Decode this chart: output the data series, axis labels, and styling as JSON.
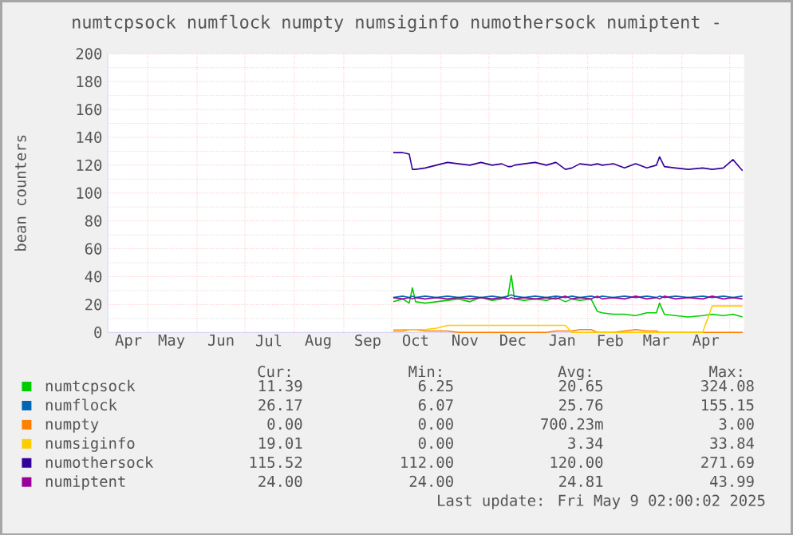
{
  "chart_data": {
    "type": "line",
    "title": "numtcpsock numflock numpty numsiginfo numothersock numiptent -",
    "ylabel": "bean counters",
    "x": [
      "2024-10-02",
      "2024-10-08",
      "2024-10-12",
      "2024-10-14",
      "2024-10-16",
      "2024-10-22",
      "2024-10-29",
      "2024-11-05",
      "2024-11-12",
      "2024-11-19",
      "2024-11-26",
      "2024-12-03",
      "2024-12-09",
      "2024-12-13",
      "2024-12-15",
      "2024-12-17",
      "2024-12-23",
      "2024-12-30",
      "2025-01-06",
      "2025-01-12",
      "2025-01-18",
      "2025-01-22",
      "2025-01-27",
      "2025-02-03",
      "2025-02-07",
      "2025-02-10",
      "2025-02-17",
      "2025-02-24",
      "2025-03-03",
      "2025-03-10",
      "2025-03-16",
      "2025-03-18",
      "2025-03-21",
      "2025-03-28",
      "2025-04-05",
      "2025-04-14",
      "2025-04-20",
      "2025-04-27",
      "2025-05-03",
      "2025-05-09"
    ],
    "series": [
      {
        "name": "numtcpsock",
        "color": "#00cc00",
        "values": [
          22,
          24,
          21,
          32,
          22,
          21,
          22,
          23,
          24,
          22,
          25,
          23,
          24,
          26,
          41,
          24,
          23,
          24,
          23,
          25,
          22,
          24,
          23,
          24,
          15,
          14,
          13,
          13,
          12,
          14,
          14,
          21,
          13,
          12,
          11,
          12,
          13,
          12,
          13,
          11
        ]
      },
      {
        "name": "numflock",
        "color": "#0066b3",
        "values": [
          25,
          26,
          25,
          26,
          25,
          26,
          25,
          26,
          25,
          26,
          25,
          26,
          25,
          26,
          27,
          26,
          25,
          26,
          25,
          26,
          25,
          26,
          25,
          26,
          25,
          26,
          25,
          26,
          25,
          26,
          25,
          26,
          25,
          26,
          25,
          26,
          25,
          26,
          25,
          26
        ]
      },
      {
        "name": "numpty",
        "color": "#ff8000",
        "values": [
          1,
          1,
          2,
          2,
          2,
          1,
          1,
          1,
          0,
          0,
          0,
          0,
          0,
          0,
          0,
          0,
          0,
          0,
          0,
          1,
          1,
          1,
          2,
          2,
          0,
          0,
          0,
          1,
          2,
          1,
          1,
          0,
          0,
          0,
          0,
          0,
          0,
          0,
          0,
          0
        ]
      },
      {
        "name": "numsiginfo",
        "color": "#ffcc00",
        "values": [
          2,
          2,
          2,
          2,
          2,
          2,
          3,
          5,
          5,
          5,
          5,
          5,
          5,
          5,
          5,
          5,
          5,
          5,
          5,
          5,
          5,
          0,
          0,
          0,
          0,
          0,
          0,
          0,
          0,
          0,
          0,
          0,
          0,
          0,
          0,
          0,
          19,
          19,
          19,
          19
        ]
      },
      {
        "name": "numothersock",
        "color": "#330099",
        "values": [
          129,
          129,
          128,
          117,
          117,
          118,
          120,
          122,
          121,
          120,
          122,
          120,
          121,
          119,
          119,
          120,
          121,
          122,
          120,
          122,
          117,
          118,
          121,
          120,
          121,
          120,
          121,
          118,
          121,
          118,
          120,
          126,
          119,
          118,
          117,
          118,
          117,
          118,
          124,
          116
        ]
      },
      {
        "name": "numiptent",
        "color": "#990099",
        "values": [
          25,
          24,
          25,
          24,
          25,
          24,
          25,
          24,
          25,
          24,
          25,
          24,
          25,
          24,
          25,
          24,
          25,
          24,
          25,
          24,
          26,
          24,
          25,
          24,
          26,
          24,
          25,
          24,
          26,
          24,
          25,
          24,
          26,
          24,
          25,
          24,
          26,
          24,
          25,
          24
        ]
      }
    ],
    "xlim": [
      "2024-04-06",
      "2025-05-10"
    ],
    "xticks": [
      {
        "value": "2024-04-19",
        "label": "Apr"
      },
      {
        "value": "2024-05-01",
        "label": null
      },
      {
        "value": "2024-05-16",
        "label": "May"
      },
      {
        "value": "2024-06-01",
        "label": null
      },
      {
        "value": "2024-06-16",
        "label": "Jun"
      },
      {
        "value": "2024-07-01",
        "label": null
      },
      {
        "value": "2024-07-16",
        "label": "Jul"
      },
      {
        "value": "2024-08-01",
        "label": null
      },
      {
        "value": "2024-08-16",
        "label": "Aug"
      },
      {
        "value": "2024-09-01",
        "label": null
      },
      {
        "value": "2024-09-16",
        "label": "Sep"
      },
      {
        "value": "2024-10-01",
        "label": null
      },
      {
        "value": "2024-10-16",
        "label": "Oct"
      },
      {
        "value": "2024-11-01",
        "label": null
      },
      {
        "value": "2024-11-16",
        "label": "Nov"
      },
      {
        "value": "2024-12-01",
        "label": null
      },
      {
        "value": "2024-12-16",
        "label": "Dec"
      },
      {
        "value": "2025-01-01",
        "label": null
      },
      {
        "value": "2025-01-16",
        "label": "Jan"
      },
      {
        "value": "2025-02-01",
        "label": null
      },
      {
        "value": "2025-02-15",
        "label": "Feb"
      },
      {
        "value": "2025-03-01",
        "label": null
      },
      {
        "value": "2025-03-16",
        "label": "Mar"
      },
      {
        "value": "2025-04-01",
        "label": null
      },
      {
        "value": "2025-04-16",
        "label": "Apr"
      },
      {
        "value": "2025-05-01",
        "label": null
      }
    ],
    "ylim": [
      0,
      200
    ],
    "yticks": [
      0,
      20,
      40,
      60,
      80,
      100,
      120,
      140,
      160,
      180,
      200
    ],
    "grid": true,
    "legend": "bottom",
    "marker": "none",
    "line_style": "solid",
    "annotations": [
      "Cur:",
      "Min:",
      "Avg:",
      "Max:",
      "11.39",
      "6.25",
      "20.65",
      "324.08",
      "26.17",
      "6.07",
      "25.76",
      "155.15",
      "0.00",
      "0.00",
      "700.23m",
      "3.00",
      "19.01",
      "0.00",
      "3.34",
      "33.84",
      "115.52",
      "112.00",
      "120.00",
      "271.69",
      "24.00",
      "24.00",
      "24.81",
      "43.99",
      "Last update: Fri May  9 02:00:02 2025"
    ]
  }
}
